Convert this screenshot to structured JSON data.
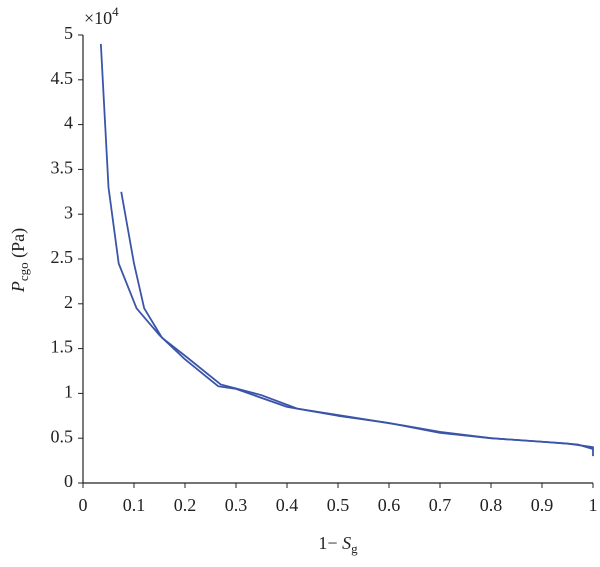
{
  "chart_data": {
    "type": "line",
    "y_multiplier": "×10",
    "y_multiplier_exp": "4",
    "ylabel": "P",
    "ylabel_sub": "cgo",
    "ylabel_unit": " (Pa)",
    "xlabel": "1− ",
    "xlabel_var": "S",
    "xlabel_sub": "g",
    "xlim": [
      0,
      1
    ],
    "xticks": [
      0,
      0.1,
      0.2,
      0.3,
      0.4,
      0.5,
      0.6,
      0.7,
      0.8,
      0.9,
      1
    ],
    "ylim": [
      0,
      5
    ],
    "yticks": [
      0,
      0.5,
      1,
      1.5,
      2,
      2.5,
      3,
      3.5,
      4,
      4.5,
      5
    ],
    "grid": false,
    "series": [
      {
        "color": "#3a55a8",
        "x": [
          0.035,
          0.05,
          0.07,
          0.105,
          0.15,
          0.2,
          0.265,
          0.3,
          0.4,
          0.5,
          0.6,
          0.7,
          0.8,
          0.9,
          0.95,
          1,
          1
        ],
        "values": [
          4.9,
          3.3,
          2.45,
          1.95,
          1.65,
          1.38,
          1.08,
          1.05,
          0.85,
          0.75,
          0.67,
          0.56,
          0.5,
          0.46,
          0.44,
          0.4,
          0.3
        ]
      },
      {
        "color": "#3a55a8",
        "x": [
          0.075,
          0.1,
          0.12,
          0.155,
          0.2,
          0.27,
          0.35,
          0.42,
          0.52,
          0.63,
          0.7,
          0.8,
          0.9,
          0.97,
          1
        ],
        "values": [
          3.25,
          2.45,
          1.95,
          1.62,
          1.42,
          1.1,
          0.98,
          0.83,
          0.74,
          0.64,
          0.57,
          0.5,
          0.46,
          0.43,
          0.38
        ]
      }
    ]
  }
}
